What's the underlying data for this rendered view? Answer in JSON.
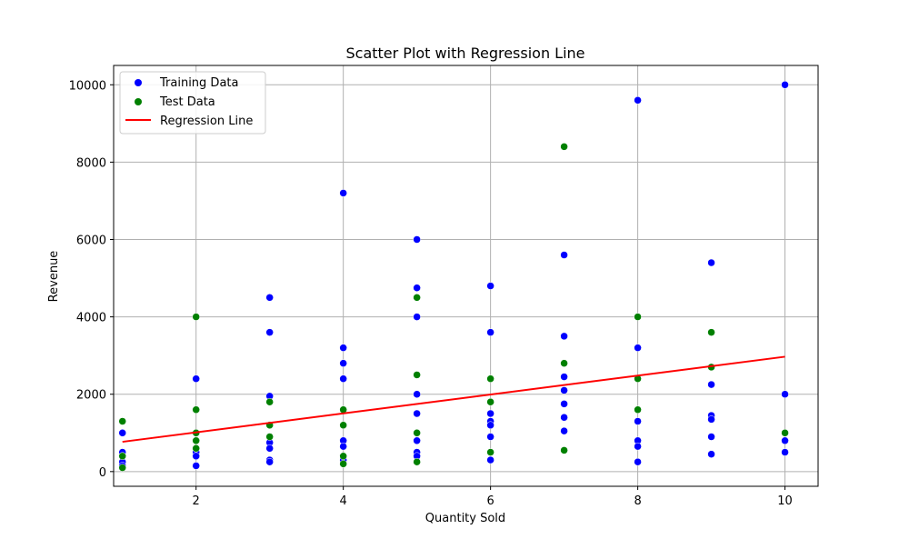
{
  "chart_data": {
    "type": "scatter",
    "title": "Scatter Plot with Regression Line",
    "xlabel": "Quantity Sold",
    "ylabel": "Revenue",
    "xlim": [
      0.88,
      10.45
    ],
    "ylim": [
      -380,
      10500
    ],
    "xticks": [
      2,
      4,
      6,
      8,
      10
    ],
    "yticks": [
      0,
      2000,
      4000,
      6000,
      8000,
      10000
    ],
    "grid": true,
    "legend_position": "top-left",
    "series": [
      {
        "name": "Training Data",
        "color": "#0000ff",
        "marker": "circle",
        "points": [
          [
            1,
            1000
          ],
          [
            1,
            500
          ],
          [
            1,
            400
          ],
          [
            1,
            250
          ],
          [
            1,
            150
          ],
          [
            2,
            2400
          ],
          [
            2,
            500
          ],
          [
            2,
            400
          ],
          [
            2,
            150
          ],
          [
            3,
            4500
          ],
          [
            3,
            3600
          ],
          [
            3,
            1950
          ],
          [
            3,
            900
          ],
          [
            3,
            750
          ],
          [
            3,
            600
          ],
          [
            3,
            300
          ],
          [
            3,
            250
          ],
          [
            4,
            7200
          ],
          [
            4,
            3200
          ],
          [
            4,
            2800
          ],
          [
            4,
            2400
          ],
          [
            4,
            800
          ],
          [
            4,
            650
          ],
          [
            4,
            300
          ],
          [
            5,
            6000
          ],
          [
            5,
            4750
          ],
          [
            5,
            4000
          ],
          [
            5,
            2000
          ],
          [
            5,
            1500
          ],
          [
            5,
            800
          ],
          [
            5,
            500
          ],
          [
            5,
            400
          ],
          [
            6,
            4800
          ],
          [
            6,
            3600
          ],
          [
            6,
            1500
          ],
          [
            6,
            1300
          ],
          [
            6,
            1200
          ],
          [
            6,
            900
          ],
          [
            6,
            300
          ],
          [
            7,
            5600
          ],
          [
            7,
            3500
          ],
          [
            7,
            2450
          ],
          [
            7,
            2100
          ],
          [
            7,
            1750
          ],
          [
            7,
            1400
          ],
          [
            7,
            1050
          ],
          [
            8,
            9600
          ],
          [
            8,
            3200
          ],
          [
            8,
            1300
          ],
          [
            8,
            800
          ],
          [
            8,
            650
          ],
          [
            8,
            250
          ],
          [
            9,
            5400
          ],
          [
            9,
            2250
          ],
          [
            9,
            1450
          ],
          [
            9,
            1350
          ],
          [
            9,
            900
          ],
          [
            9,
            450
          ],
          [
            10,
            10000
          ],
          [
            10,
            2000
          ],
          [
            10,
            800
          ],
          [
            10,
            500
          ]
        ]
      },
      {
        "name": "Test Data",
        "color": "#008000",
        "marker": "circle",
        "points": [
          [
            1,
            1300
          ],
          [
            1,
            400
          ],
          [
            1,
            100
          ],
          [
            2,
            4000
          ],
          [
            2,
            1600
          ],
          [
            2,
            1000
          ],
          [
            2,
            800
          ],
          [
            2,
            600
          ],
          [
            3,
            1800
          ],
          [
            3,
            1200
          ],
          [
            3,
            900
          ],
          [
            4,
            1600
          ],
          [
            4,
            1200
          ],
          [
            4,
            400
          ],
          [
            4,
            200
          ],
          [
            5,
            4500
          ],
          [
            5,
            2500
          ],
          [
            5,
            1000
          ],
          [
            5,
            250
          ],
          [
            6,
            2400
          ],
          [
            6,
            1800
          ],
          [
            6,
            500
          ],
          [
            7,
            8400
          ],
          [
            7,
            2800
          ],
          [
            7,
            550
          ],
          [
            8,
            4000
          ],
          [
            8,
            2400
          ],
          [
            8,
            1600
          ],
          [
            9,
            3600
          ],
          [
            9,
            2700
          ],
          [
            10,
            1000
          ]
        ]
      }
    ],
    "regression_line": {
      "name": "Regression Line",
      "color": "#ff0000",
      "x": [
        1,
        10
      ],
      "y": [
        770,
        2970
      ]
    }
  }
}
